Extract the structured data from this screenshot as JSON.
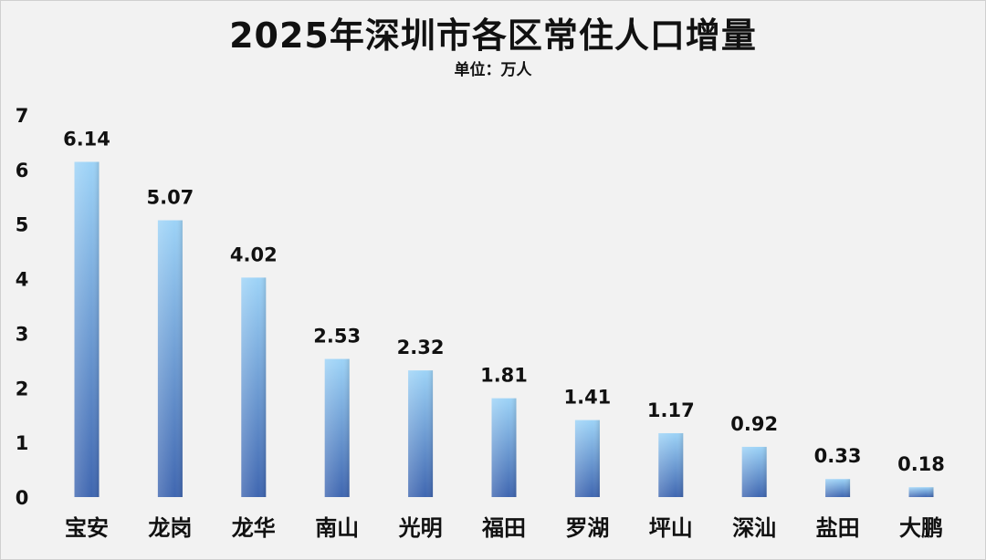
{
  "chart_data": {
    "type": "bar",
    "title": "2025年深圳市各区常住人口增量",
    "subtitle": "单位：万人",
    "categories": [
      "宝安",
      "龙岗",
      "龙华",
      "南山",
      "光明",
      "福田",
      "罗湖",
      "坪山",
      "深汕",
      "盐田",
      "大鹏"
    ],
    "values": [
      6.14,
      5.07,
      4.02,
      2.53,
      2.32,
      1.81,
      1.41,
      1.17,
      0.92,
      0.33,
      0.18
    ],
    "data_labels": [
      "6.14",
      "5.07",
      "4.02",
      "2.53",
      "2.32",
      "1.81",
      "1.41",
      "1.17",
      "0.92",
      "0.33",
      "0.18"
    ],
    "ylim": [
      0,
      7
    ],
    "yticks": [
      "0",
      "1",
      "2",
      "3",
      "4",
      "5",
      "6",
      "7"
    ],
    "xlabel": "",
    "ylabel": "",
    "grid": false,
    "legend": "none",
    "colors": {
      "bar_top": "#9dd3f7",
      "bar_bottom": "#3f66b0",
      "background": "#f2f2f2"
    }
  }
}
